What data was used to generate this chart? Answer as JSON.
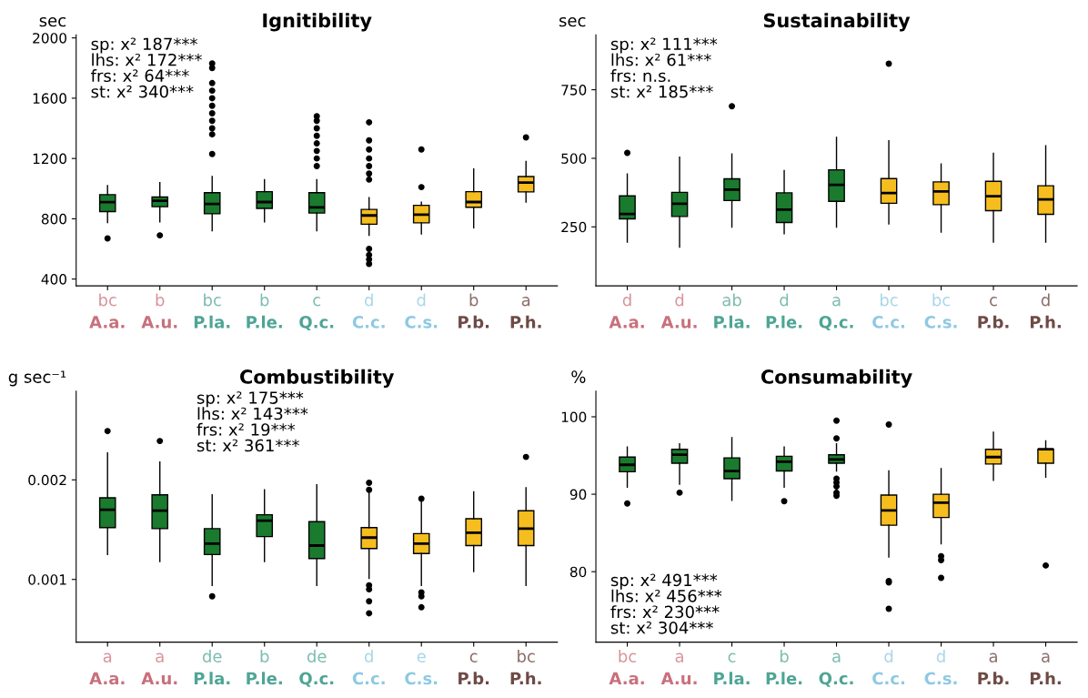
{
  "chart_data": [
    {
      "type": "box",
      "title": "Ignitibility",
      "ylabel": "sec",
      "categories": [
        "A.a.",
        "A.u.",
        "P.la.",
        "P.le.",
        "Q.c.",
        "C.c.",
        "C.s.",
        "P.b.",
        "P.h."
      ],
      "colors": [
        "#1a7a2e",
        "#1a7a2e",
        "#1a7a2e",
        "#1a7a2e",
        "#1a7a2e",
        "#f5bd1e",
        "#f5bd1e",
        "#f5bd1e",
        "#f5bd1e"
      ],
      "ylim": [
        355,
        2020
      ],
      "yticks": [
        400,
        800,
        1200,
        1600,
        2000
      ],
      "grid": false,
      "legend": false,
      "boxes": [
        {
          "low": 775,
          "q1": 848,
          "median": 910,
          "q3": 960,
          "high": 1020,
          "outliers": [
            670
          ]
        },
        {
          "low": 780,
          "q1": 880,
          "median": 920,
          "q3": 944,
          "high": 1040,
          "outliers": [
            690
          ]
        },
        {
          "low": 720,
          "q1": 833,
          "median": 898,
          "q3": 973,
          "high": 1080,
          "outliers": [
            1230,
            1360,
            1400,
            1450,
            1500,
            1550,
            1600,
            1650,
            1700,
            1800,
            1830
          ]
        },
        {
          "low": 780,
          "q1": 869,
          "median": 911,
          "q3": 980,
          "high": 1060
        },
        {
          "low": 720,
          "q1": 838,
          "median": 876,
          "q3": 973,
          "high": 1060,
          "outliers": [
            1150,
            1200,
            1250,
            1300,
            1350,
            1400,
            1450,
            1480
          ]
        },
        {
          "low": 690,
          "q1": 764,
          "median": 822,
          "q3": 862,
          "high": 940,
          "outliers": [
            500,
            530,
            560,
            600,
            1060,
            1100,
            1150,
            1200,
            1260,
            1320,
            1440
          ]
        },
        {
          "low": 700,
          "q1": 773,
          "median": 827,
          "q3": 889,
          "high": 910,
          "outliers": [
            1010,
            1260
          ]
        },
        {
          "low": 740,
          "q1": 876,
          "median": 911,
          "q3": 980,
          "high": 1130
        },
        {
          "low": 910,
          "q1": 978,
          "median": 1040,
          "q3": 1080,
          "high": 1180,
          "outliers": [
            1340
          ]
        }
      ],
      "annotations": [
        "sp: x² 187***\nlhs: x² 172***\nfrs: x² 64***\nst: x² 340***",
        "bc",
        "b",
        "bc",
        "b",
        "c",
        "d",
        "d",
        "b",
        "a"
      ]
    },
    {
      "type": "box",
      "title": "Sustainability",
      "ylabel": "sec",
      "categories": [
        "A.a.",
        "A.u.",
        "P.la.",
        "P.le.",
        "Q.c.",
        "C.c.",
        "C.s.",
        "P.b.",
        "P.h."
      ],
      "colors": [
        "#1a7a2e",
        "#1a7a2e",
        "#1a7a2e",
        "#1a7a2e",
        "#1a7a2e",
        "#f5bd1e",
        "#f5bd1e",
        "#f5bd1e",
        "#f5bd1e"
      ],
      "ylim": [
        35,
        950
      ],
      "yticks": [
        250,
        500,
        750
      ],
      "grid": false,
      "legend": false,
      "boxes": [
        {
          "low": 194,
          "q1": 279,
          "median": 297,
          "q3": 363,
          "high": 443,
          "outliers": [
            520
          ]
        },
        {
          "low": 176,
          "q1": 288,
          "median": 334,
          "q3": 376,
          "high": 504
        },
        {
          "low": 249,
          "q1": 346,
          "median": 386,
          "q3": 425,
          "high": 516,
          "outliers": [
            690
          ]
        },
        {
          "low": 225,
          "q1": 266,
          "median": 313,
          "q3": 374,
          "high": 455
        },
        {
          "low": 249,
          "q1": 343,
          "median": 403,
          "q3": 458,
          "high": 576
        },
        {
          "low": 261,
          "q1": 336,
          "median": 373,
          "q3": 426,
          "high": 564,
          "outliers": [
            845
          ]
        },
        {
          "low": 231,
          "q1": 331,
          "median": 379,
          "q3": 414,
          "high": 479
        },
        {
          "low": 194,
          "q1": 309,
          "median": 362,
          "q3": 416,
          "high": 518
        },
        {
          "low": 194,
          "q1": 296,
          "median": 350,
          "q3": 400,
          "high": 546
        }
      ],
      "annotations": [
        "sp: x² 111***\nlhs: x² 61***\nfrs: n.s.\nst: x² 185***",
        "d",
        "d",
        "ab",
        "d",
        "a",
        "bc",
        "bc",
        "c",
        "d"
      ]
    },
    {
      "type": "box",
      "title": "Combustibility",
      "ylabel": "g sec⁻¹",
      "categories": [
        "A.a.",
        "A.u.",
        "P.la.",
        "P.le.",
        "Q.c.",
        "C.c.",
        "C.s.",
        "P.b.",
        "P.h."
      ],
      "colors": [
        "#1a7a2e",
        "#1a7a2e",
        "#1a7a2e",
        "#1a7a2e",
        "#1a7a2e",
        "#f5bd1e",
        "#f5bd1e",
        "#f5bd1e",
        "#f5bd1e"
      ],
      "ylim": [
        0.00037,
        0.00289
      ],
      "yticks": [
        0.001,
        0.002
      ],
      "grid": false,
      "legend": false,
      "boxes": [
        {
          "low": 0.00125,
          "q1": 0.00152,
          "median": 0.0017,
          "q3": 0.00182,
          "high": 0.00227,
          "outliers": [
            0.00249
          ]
        },
        {
          "low": 0.00118,
          "q1": 0.00151,
          "median": 0.00169,
          "q3": 0.00185,
          "high": 0.00218,
          "outliers": [
            0.00239
          ]
        },
        {
          "low": 0.00094,
          "q1": 0.00125,
          "median": 0.00136,
          "q3": 0.00151,
          "high": 0.00185,
          "outliers": [
            0.00083
          ]
        },
        {
          "low": 0.00118,
          "q1": 0.00143,
          "median": 0.00159,
          "q3": 0.00165,
          "high": 0.0019
        },
        {
          "low": 0.00094,
          "q1": 0.00121,
          "median": 0.00134,
          "q3": 0.00158,
          "high": 0.00195
        },
        {
          "low": 0.00101,
          "q1": 0.00131,
          "median": 0.00142,
          "q3": 0.00152,
          "high": 0.00188,
          "outliers": [
            0.00066,
            0.00078,
            0.0009,
            0.00094,
            0.0019,
            0.00197
          ]
        },
        {
          "low": 0.00094,
          "q1": 0.00126,
          "median": 0.00136,
          "q3": 0.00146,
          "high": 0.00178,
          "outliers": [
            0.00072,
            0.00083,
            0.00087,
            0.00181
          ]
        },
        {
          "low": 0.00108,
          "q1": 0.00134,
          "median": 0.00147,
          "q3": 0.00161,
          "high": 0.00188
        },
        {
          "low": 0.00094,
          "q1": 0.00134,
          "median": 0.00151,
          "q3": 0.00169,
          "high": 0.00192,
          "outliers": [
            0.00223
          ]
        }
      ],
      "annotations": [
        "sp: x² 175***\nlhs: x² 143***\nfrs: x² 19***\nst: x² 361***",
        "a",
        "a",
        "de",
        "b",
        "de",
        "d",
        "e",
        "c",
        "bc"
      ]
    },
    {
      "type": "box",
      "title": "Consumability",
      "ylabel": "%",
      "categories": [
        "A.a.",
        "A.u.",
        "P.la.",
        "P.le.",
        "Q.c.",
        "C.c.",
        "C.s.",
        "P.b.",
        "P.h."
      ],
      "colors": [
        "#1a7a2e",
        "#1a7a2e",
        "#1a7a2e",
        "#1a7a2e",
        "#1a7a2e",
        "#f5bd1e",
        "#f5bd1e",
        "#f5bd1e",
        "#f5bd1e"
      ],
      "ylim": [
        70.9,
        103.3
      ],
      "yticks": [
        80,
        90,
        100
      ],
      "grid": false,
      "legend": false,
      "boxes": [
        {
          "low": 90.9,
          "q1": 92.9,
          "median": 93.8,
          "q3": 94.8,
          "high": 96.1,
          "outliers": [
            88.8
          ]
        },
        {
          "low": 91.3,
          "q1": 94.0,
          "median": 95.1,
          "q3": 95.8,
          "high": 96.5,
          "outliers": [
            90.2
          ]
        },
        {
          "low": 89.2,
          "q1": 92.0,
          "median": 93.0,
          "q3": 94.7,
          "high": 97.3
        },
        {
          "low": 90.9,
          "q1": 93.0,
          "median": 94.2,
          "q3": 94.9,
          "high": 96.1,
          "outliers": [
            89.1
          ]
        },
        {
          "low": 93.0,
          "q1": 94.0,
          "median": 94.5,
          "q3": 95.1,
          "high": 96.5,
          "outliers": [
            99.5,
            97.2,
            92.0,
            91.5,
            91.0,
            90.2,
            89.8
          ]
        },
        {
          "low": 81.9,
          "q1": 86.0,
          "median": 87.9,
          "q3": 89.9,
          "high": 93.0,
          "outliers": [
            99.0,
            78.8,
            78.6,
            75.2
          ]
        },
        {
          "low": 83.6,
          "q1": 87.0,
          "median": 88.9,
          "q3": 90.0,
          "high": 93.3,
          "outliers": [
            82.0,
            81.5,
            79.2
          ]
        },
        {
          "low": 91.8,
          "q1": 93.9,
          "median": 94.8,
          "q3": 95.8,
          "high": 98.0
        },
        {
          "low": 92.2,
          "q1": 94.0,
          "median": 95.8,
          "q3": 95.8,
          "high": 96.9,
          "outliers": [
            80.8
          ]
        }
      ],
      "annotations": [
        "sp: x² 491***\nlhs: x² 456***\nfrs: x² 230***\nst: x² 304***",
        "bc",
        "a",
        "c",
        "b",
        "a",
        "d",
        "d",
        "a",
        "a"
      ]
    }
  ]
}
